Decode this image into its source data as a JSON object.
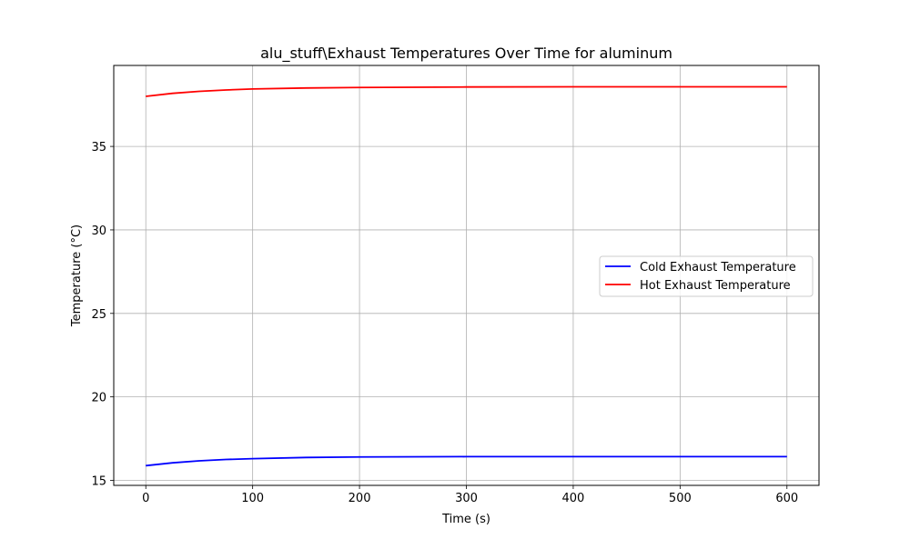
{
  "chart_data": {
    "type": "line",
    "title": "alu_stuff\\Exhaust Temperatures Over Time for aluminum",
    "xlabel": "Time (s)",
    "ylabel": "Temperature (°C)",
    "xlim": [
      -30,
      630
    ],
    "ylim": [
      14.7,
      39.85
    ],
    "xticks": [
      0,
      100,
      200,
      300,
      400,
      500,
      600
    ],
    "yticks": [
      15,
      20,
      25,
      30,
      35
    ],
    "grid": true,
    "legend_position": "center-right",
    "series": [
      {
        "name": "Cold Exhaust Temperature",
        "color": "#0000ff",
        "x": [
          0,
          25,
          50,
          75,
          100,
          150,
          200,
          300,
          400,
          500,
          600
        ],
        "y": [
          15.88,
          16.05,
          16.17,
          16.25,
          16.3,
          16.37,
          16.4,
          16.42,
          16.42,
          16.42,
          16.42
        ]
      },
      {
        "name": "Hot Exhaust Temperature",
        "color": "#ff0000",
        "x": [
          0,
          25,
          50,
          75,
          100,
          150,
          200,
          300,
          400,
          500,
          600
        ],
        "y": [
          38.0,
          38.18,
          38.3,
          38.38,
          38.44,
          38.5,
          38.53,
          38.56,
          38.57,
          38.57,
          38.57
        ]
      }
    ]
  }
}
